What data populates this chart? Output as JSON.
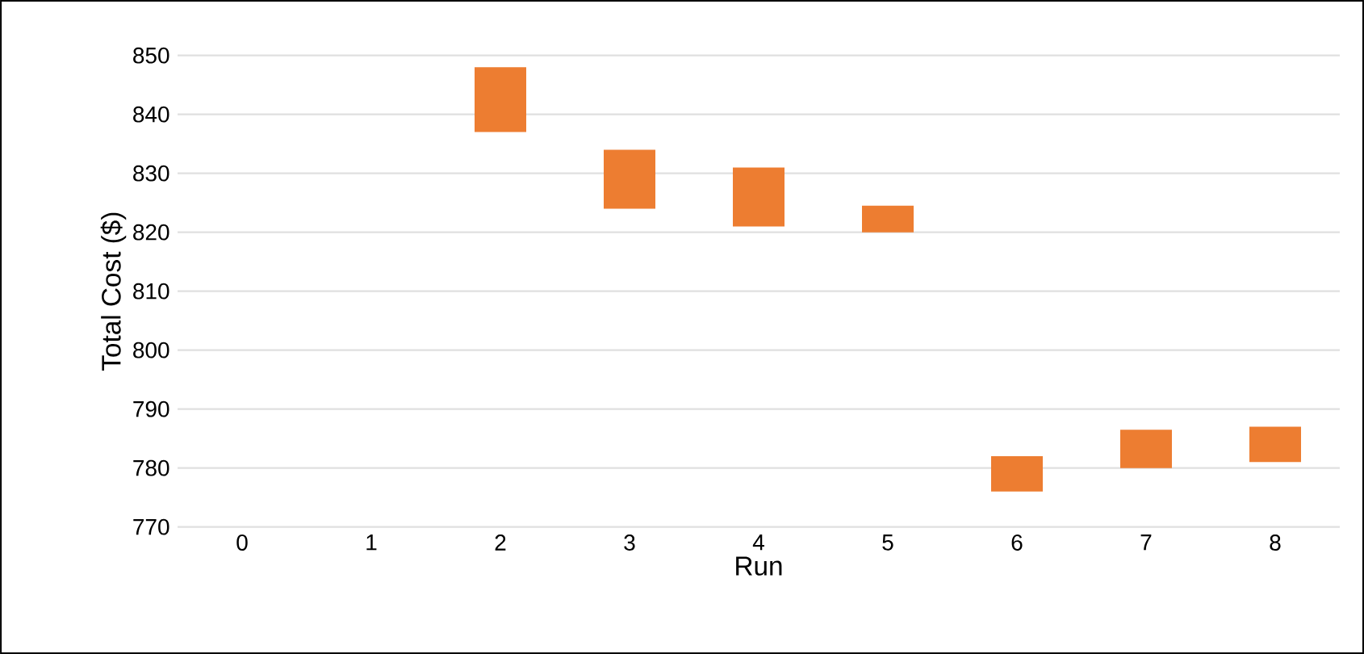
{
  "chart_data": {
    "type": "bar",
    "xlabel": "Run",
    "ylabel": "Total Cost ($)",
    "categories": [
      "0",
      "1",
      "2",
      "3",
      "4",
      "5",
      "6",
      "7",
      "8"
    ],
    "base": [
      null,
      null,
      837,
      824,
      821,
      820,
      776,
      780,
      781
    ],
    "values": [
      null,
      null,
      11,
      10,
      10,
      4.5,
      6,
      6.5,
      6
    ],
    "color": "#ed7d31",
    "ylim": [
      770,
      850
    ],
    "yticks": [
      770,
      780,
      790,
      800,
      810,
      820,
      830,
      840,
      850
    ],
    "grid": "y"
  }
}
